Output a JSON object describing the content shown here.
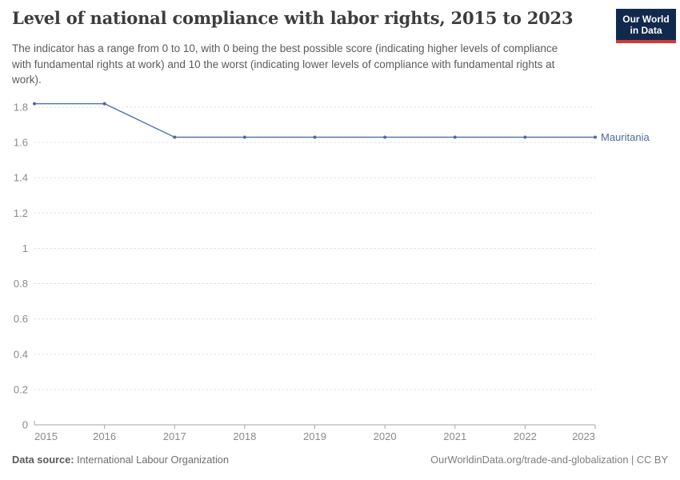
{
  "header": {
    "title": "Level of national compliance with labor rights, 2015 to 2023",
    "subtitle": "The indicator has a range from 0 to 10, with 0 being the best possible score (indicating higher levels of compliance with fundamental rights at work) and 10 the worst (indicating lower levels of compliance with fundamental rights at work).",
    "logo": {
      "line1": "Our World",
      "line2": "in Data",
      "bg_color": "#12294e",
      "accent_color": "#cf3b33"
    }
  },
  "chart_data": {
    "type": "line",
    "title": "Level of national compliance with labor rights, 2015 to 2023",
    "x": [
      2015,
      2016,
      2017,
      2018,
      2019,
      2020,
      2021,
      2022,
      2023
    ],
    "series": [
      {
        "name": "Mauritania",
        "values": [
          1.82,
          1.82,
          1.63,
          1.63,
          1.63,
          1.63,
          1.63,
          1.63,
          1.63
        ],
        "color": "#5878ab",
        "point_color": "#4a6aa0",
        "label_color": "#4c6a9c"
      }
    ],
    "xlabel": "",
    "ylabel": "",
    "ylim": [
      0,
      1.8
    ],
    "yticks": [
      0,
      0.2,
      0.4,
      0.6,
      0.8,
      1,
      1.2,
      1.4,
      1.6,
      1.8
    ],
    "grid": "horizontal-dashed",
    "gridline_color": "#dcdcdc",
    "axis_color": "#a6a6a6",
    "tick_label_color": "#8a8a8a",
    "legend_position": "end-of-line-label"
  },
  "footer": {
    "source_label": "Data source:",
    "source_value": "International Labour Organization",
    "right": "OurWorldinData.org/trade-and-globalization | CC BY"
  }
}
